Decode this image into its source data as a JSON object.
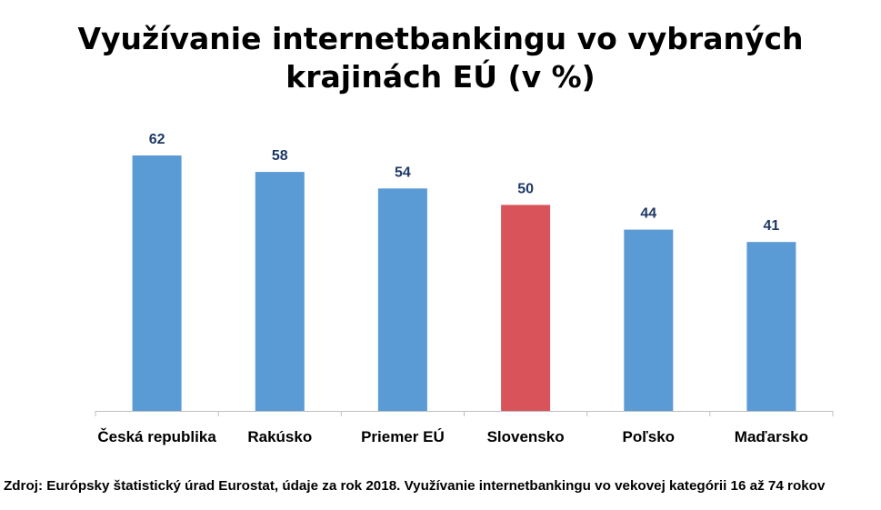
{
  "chart_data": {
    "type": "bar",
    "title_lines": [
      "Využívanie internetbankingu vo vybraných",
      "krajinách EÚ (v %)"
    ],
    "categories": [
      "Česká republika",
      "Rakúsko",
      "Priemer EÚ",
      "Slovensko",
      "Poľsko",
      "Maďarsko"
    ],
    "values": [
      62,
      58,
      54,
      50,
      44,
      41
    ],
    "data_labels": [
      "62",
      "58",
      "54",
      "50",
      "44",
      "41"
    ],
    "highlight_index": 3,
    "colors": {
      "bar": "#5b9bd5",
      "highlight": "#d9545a",
      "data_label": "#1f3864",
      "axis": "#bfbfbf"
    },
    "ylim": [
      0,
      62
    ],
    "grid": false,
    "legend": "none"
  },
  "source": "Zdroj: Európsky štatistický úrad Eurostat, údaje za rok 2018. Využívanie internetbankingu vo vekovej kategórii 16 až 74 rokov"
}
